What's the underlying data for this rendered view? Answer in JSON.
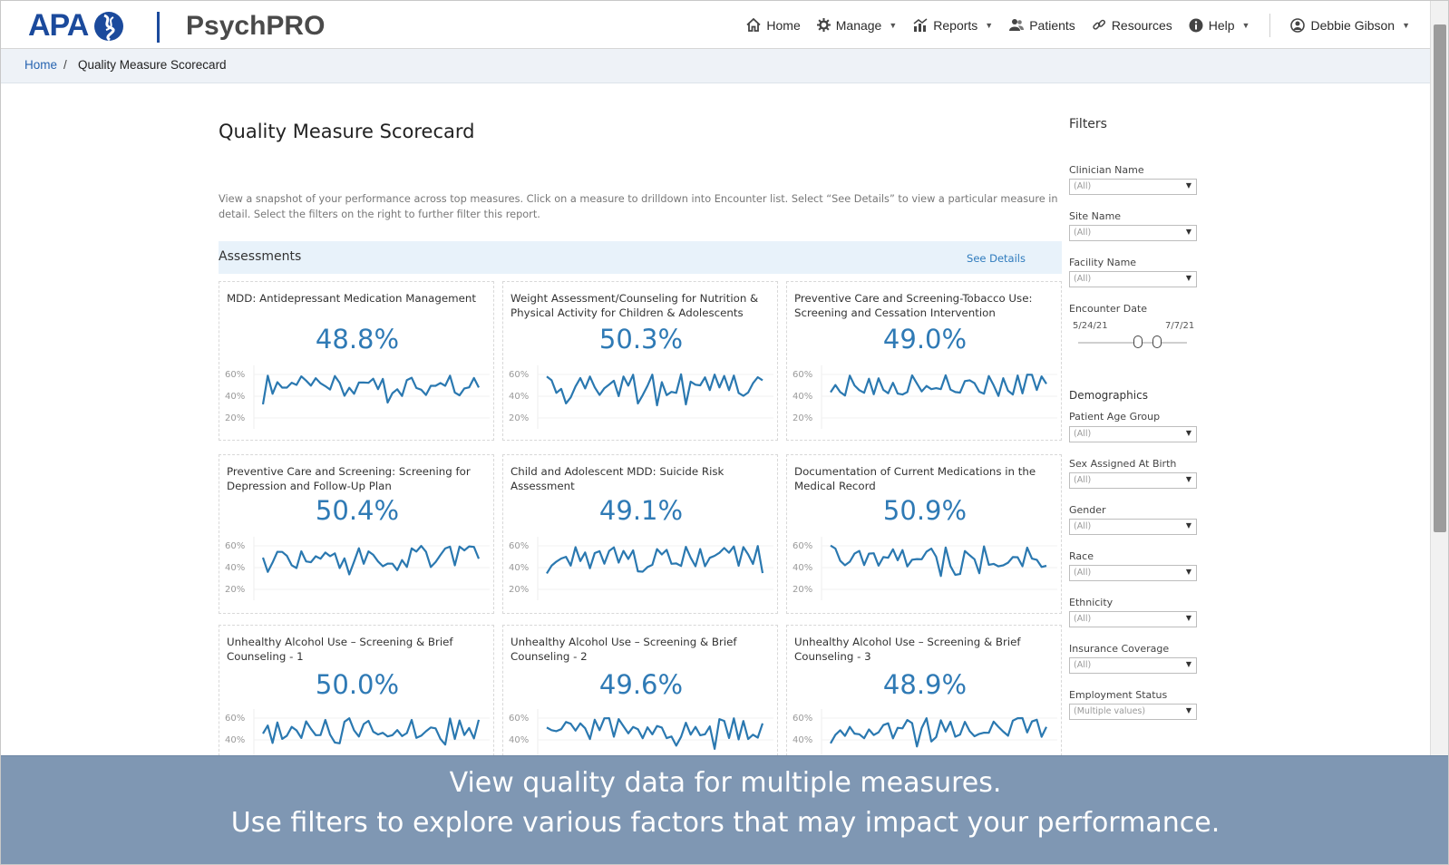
{
  "header": {
    "logo_text": "APA",
    "brand": "PsychPRO",
    "nav": [
      {
        "label": "Home",
        "icon": "home-icon",
        "dropdown": false
      },
      {
        "label": "Manage",
        "icon": "gear-icon",
        "dropdown": true
      },
      {
        "label": "Reports",
        "icon": "bar-chart-icon",
        "dropdown": true
      },
      {
        "label": "Patients",
        "icon": "users-icon",
        "dropdown": false
      },
      {
        "label": "Resources",
        "icon": "link-icon",
        "dropdown": false
      },
      {
        "label": "Help",
        "icon": "info-icon",
        "dropdown": true
      }
    ],
    "user": {
      "label": "Debbie Gibson",
      "icon": "user-icon"
    }
  },
  "breadcrumb": {
    "home": "Home",
    "separator": "/",
    "current": "Quality Measure Scorecard"
  },
  "page": {
    "title": "Quality Measure Scorecard",
    "description": "View a snapshot of your performance across top measures. Click on a measure to drilldown into Encounter list.  Select “See Details” to view a particular measure in detail. Select the filters on the right to further filter this report."
  },
  "section": {
    "title": "Assessments",
    "see_details": "See Details"
  },
  "measures": [
    {
      "title": "MDD: Antidepressant Medication Management",
      "value": "48.8%",
      "yticks": [
        "60%",
        "40%",
        "20%"
      ]
    },
    {
      "title": "Weight Assessment/Counseling for Nutrition & Physical Activity for Children & Adolescents",
      "value": "50.3%",
      "yticks": [
        "60%",
        "40%",
        "20%"
      ]
    },
    {
      "title": "Preventive Care and Screening-Tobacco Use: Screening and Cessation Intervention",
      "value": "49.0%",
      "yticks": [
        "60%",
        "40%",
        "20%"
      ]
    },
    {
      "title": "Preventive Care and Screening: Screening for Depression and Follow-Up Plan",
      "value": "50.4%",
      "yticks": [
        "60%",
        "40%",
        "20%"
      ]
    },
    {
      "title": "Child and Adolescent MDD: Suicide Risk Assessment",
      "value": "49.1%",
      "yticks": [
        "60%",
        "40%",
        "20%"
      ]
    },
    {
      "title": "Documentation of Current Medications in the Medical Record",
      "value": "50.9%",
      "yticks": [
        "60%",
        "40%",
        "20%"
      ]
    },
    {
      "title": "Unhealthy Alcohol Use – Screening & Brief Counseling - 1",
      "value": "50.0%",
      "yticks": [
        "60%",
        "40%"
      ]
    },
    {
      "title": "Unhealthy Alcohol Use – Screening & Brief Counseling - 2",
      "value": "49.6%",
      "yticks": [
        "60%",
        "40%"
      ]
    },
    {
      "title": "Unhealthy Alcohol Use – Screening & Brief Counseling - 3",
      "value": "48.9%",
      "yticks": [
        "60%",
        "40%"
      ]
    }
  ],
  "filters": {
    "title": "Filters",
    "clinician_name": {
      "label": "Clinician Name",
      "value": "(All)"
    },
    "site_name": {
      "label": "Site Name",
      "value": "(All)"
    },
    "facility_name": {
      "label": "Facility Name",
      "value": "(All)"
    },
    "encounter_date": {
      "label": "Encounter Date",
      "start": "5/24/21",
      "end": "7/7/21"
    },
    "demographics_title": "Demographics",
    "patient_age_group": {
      "label": "Patient Age Group",
      "value": "(All)"
    },
    "sex_assigned_at_birth": {
      "label": "Sex Assigned At Birth",
      "value": "(All)"
    },
    "gender": {
      "label": "Gender",
      "value": "(All)"
    },
    "race": {
      "label": "Race",
      "value": "(All)"
    },
    "ethnicity": {
      "label": "Ethnicity",
      "value": "(All)"
    },
    "insurance_coverage": {
      "label": "Insurance Coverage",
      "value": "(All)"
    },
    "employment_status": {
      "label": "Employment Status",
      "value": "(Multiple values)"
    }
  },
  "banner": {
    "line1": "View quality data for multiple measures.",
    "line2": "Use filters to explore various factors that may impact your performance."
  },
  "colors": {
    "brand_blue": "#1b4a9c",
    "chart_line": "#2a78b0",
    "value_blue": "#2f7ab5",
    "banner_bg": "#7f97b3",
    "section_band": "#e8f2fa"
  }
}
